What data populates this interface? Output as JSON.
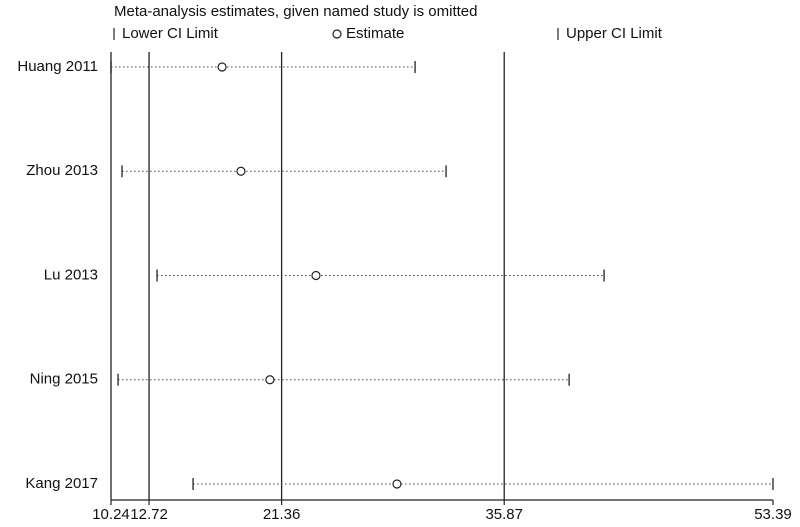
{
  "chart_data": {
    "type": "forest",
    "title": "Meta-analysis estimates, given named study is omitted",
    "categories": [
      "Huang 2011",
      "Zhou 2013",
      "Lu 2013",
      "Ning 2015",
      "Kang 2017"
    ],
    "series": [
      {
        "name": "Lower CI Limit",
        "color": "#222222",
        "values": [
          10.24,
          10.96,
          13.24,
          10.7,
          15.59
        ]
      },
      {
        "name": "Estimate",
        "color": "#222222",
        "values": [
          17.48,
          18.71,
          23.6,
          20.6,
          28.88
        ]
      },
      {
        "name": "Upper CI Limit",
        "color": "#222222",
        "values": [
          30.06,
          32.08,
          42.38,
          40.1,
          53.39
        ]
      }
    ],
    "reference_lines": [
      12.72,
      21.36,
      35.87
    ],
    "xlim": [
      10.24,
      53.39
    ],
    "xticks": [
      10.24,
      12.72,
      21.36,
      35.87,
      53.39
    ]
  }
}
